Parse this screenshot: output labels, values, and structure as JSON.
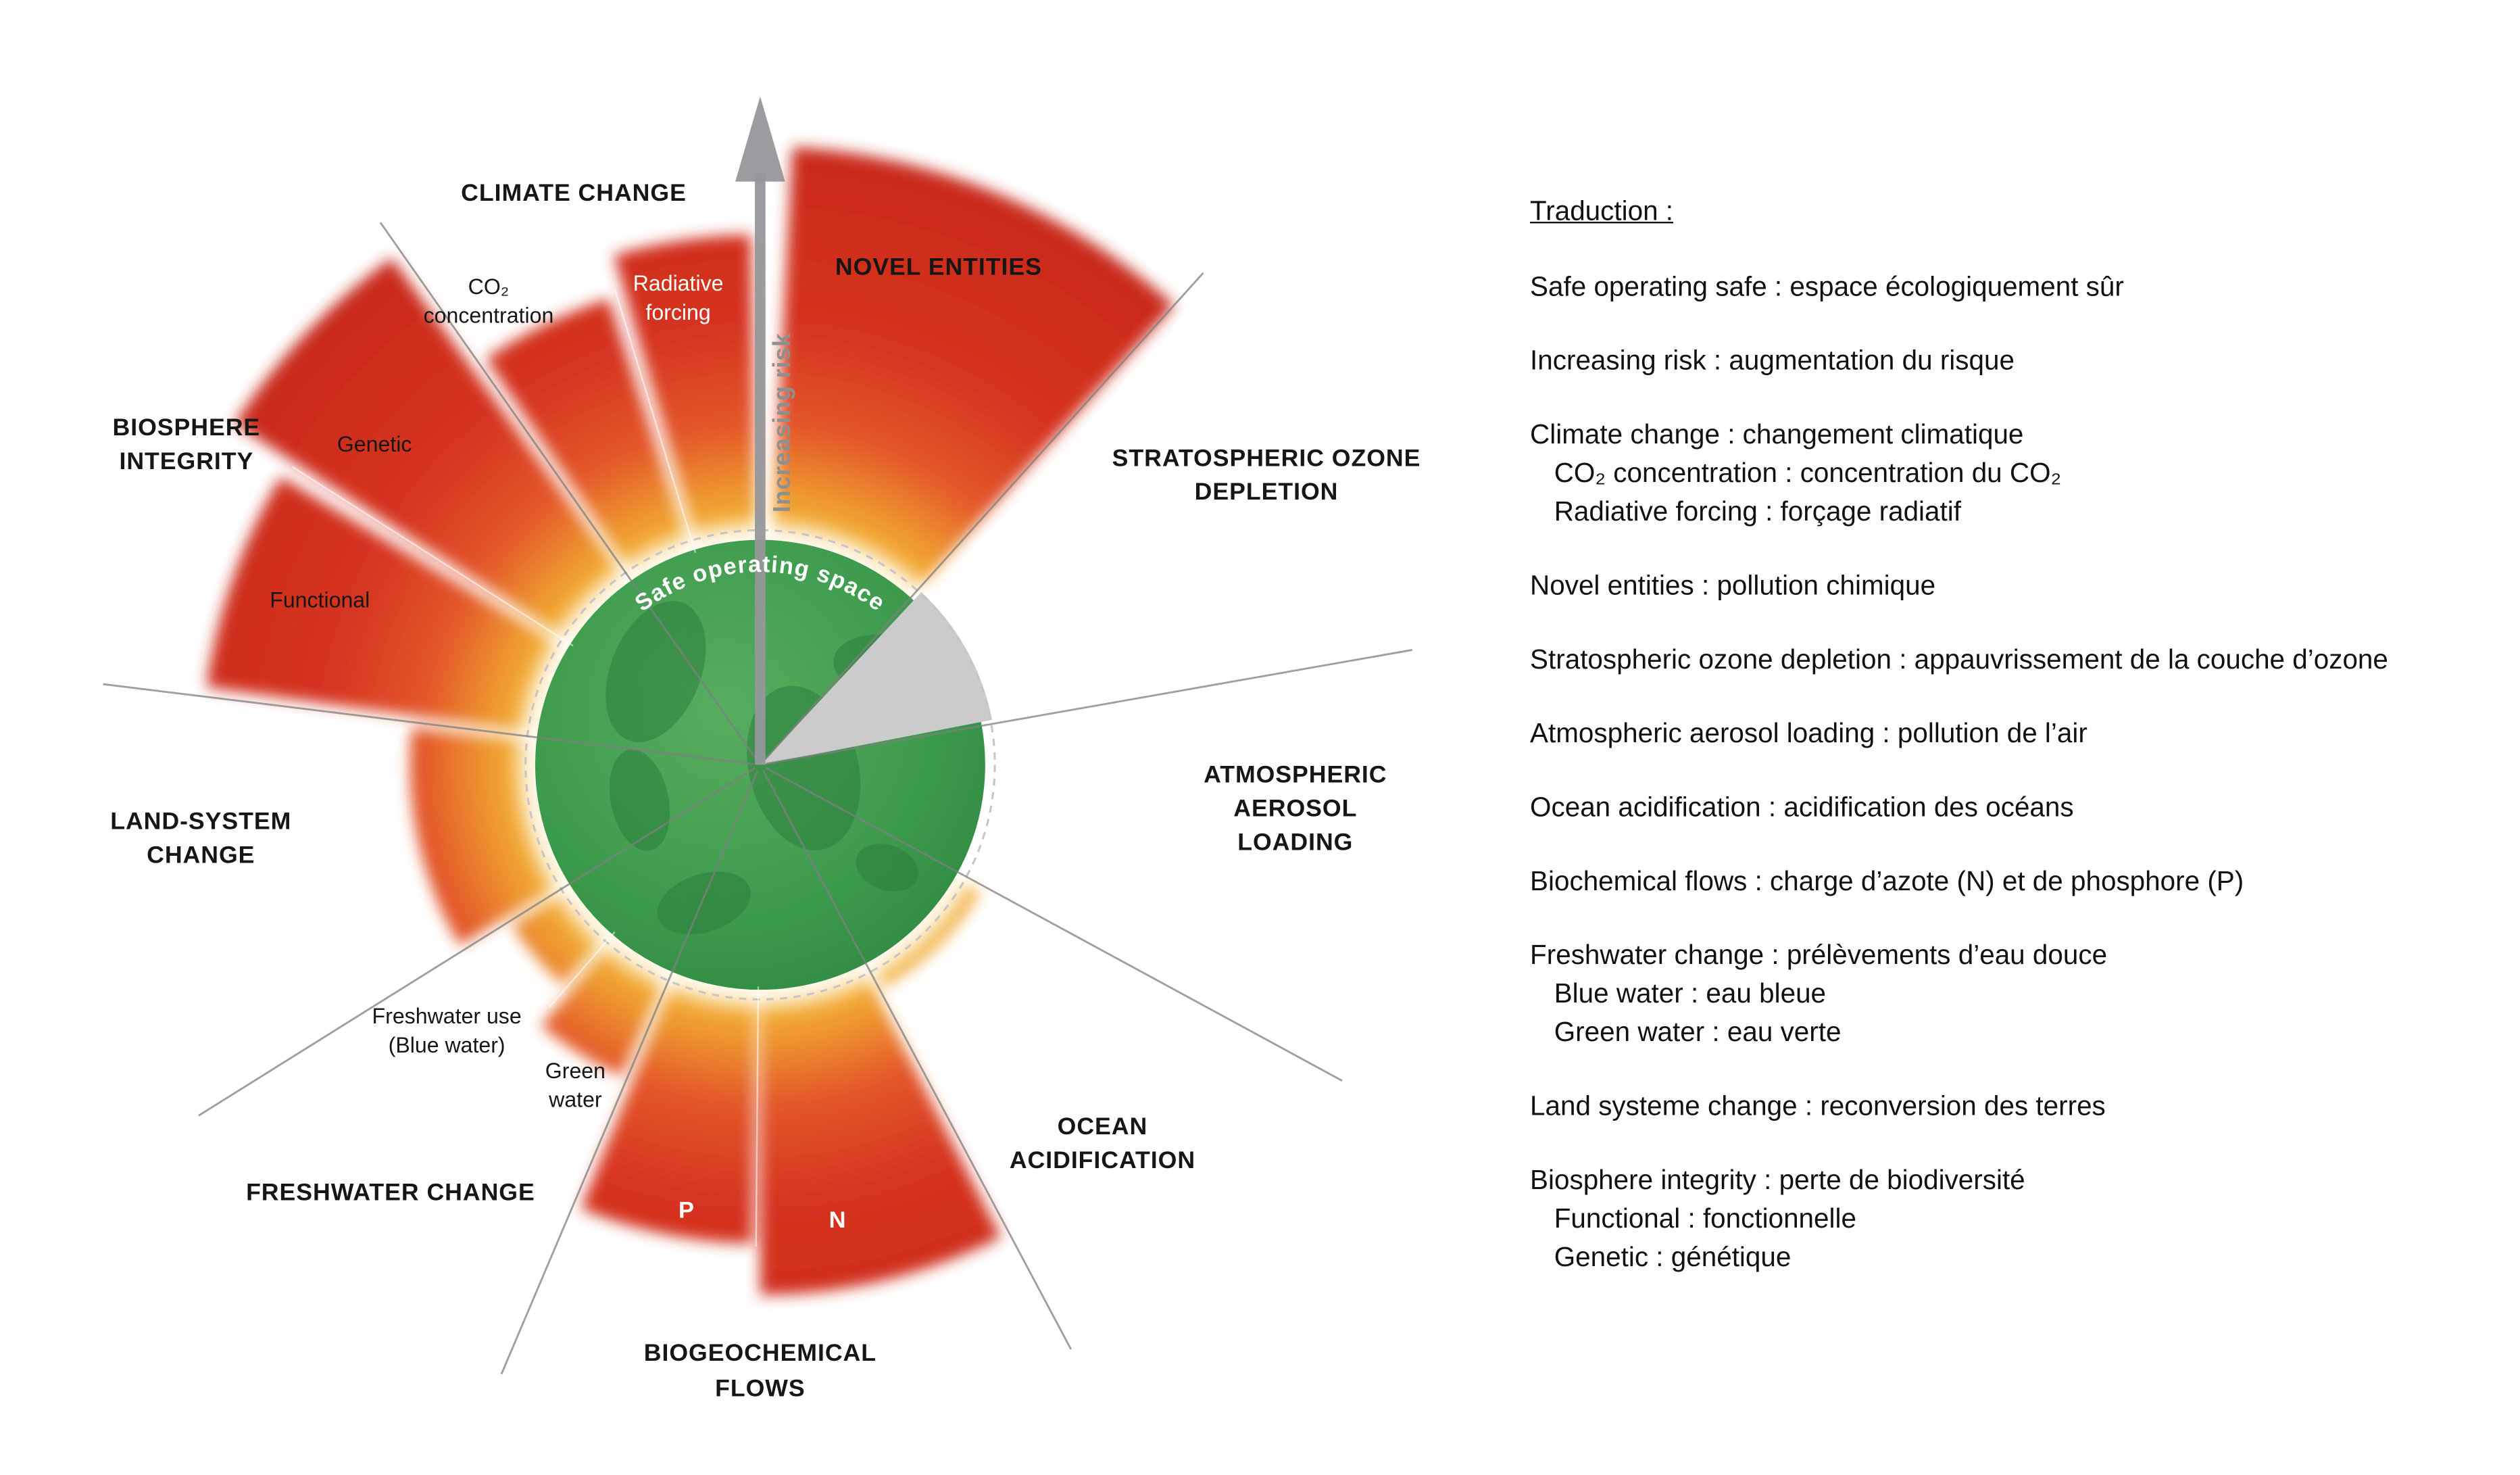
{
  "diagram": {
    "arrow_label": "Increasing risk",
    "center_label": "Safe operating space",
    "colors": {
      "safe_green": "#2f8a43",
      "risk_yellow": "#f7c43c",
      "risk_orange": "#ee9a30",
      "risk_red": "#d32f21",
      "gray_zone": "#cbcbcb",
      "divider_gray": "#7f7f7f",
      "arrow_gray": "#96979a"
    },
    "boundaries": [
      {
        "id": "novel-entities",
        "label": "NOVEL ENTITIES",
        "zone": "high-risk",
        "angle_start": 3,
        "angle_end": 42,
        "outer_radius": 385
      },
      {
        "id": "stratospheric-ozone",
        "label": "STRATOSPHERIC OZONE DEPLETION",
        "zone": "within-safe-gray",
        "angle_start": 43,
        "angle_end": 79,
        "outer_radius": 147
      },
      {
        "id": "atmospheric-aerosol",
        "label": "ATMOSPHERIC AEROSOL LOADING",
        "zone": "safe",
        "angle_start": 81,
        "angle_end": 117,
        "outer_radius": 0
      },
      {
        "id": "ocean-acidification",
        "label": "OCEAN ACIDIFICATION",
        "zone": "increasing-risk",
        "angle_start": 120,
        "angle_end": 151,
        "outer_radius": 158
      },
      {
        "id": "biogeochemical-n",
        "label": "N",
        "zone": "high-risk",
        "angle_start": 153,
        "angle_end": 180,
        "outer_radius": 330
      },
      {
        "id": "biogeochemical-p",
        "label": "P",
        "zone": "high-risk",
        "angle_start": 181,
        "angle_end": 202,
        "outer_radius": 298
      },
      {
        "id": "green-water",
        "label": "Green water",
        "zone": "increasing-risk",
        "angle_start": 204,
        "angle_end": 220,
        "outer_radius": 212
      },
      {
        "id": "blue-water",
        "label": "Freshwater use (Blue water)",
        "zone": "increasing-risk",
        "angle_start": 222,
        "angle_end": 237,
        "outer_radius": 184
      },
      {
        "id": "land-system-change",
        "label": "LAND-SYSTEM CHANGE",
        "zone": "increasing-risk",
        "angle_start": 239,
        "angle_end": 276,
        "outer_radius": 218
      },
      {
        "id": "biosphere-functional",
        "label": "Functional",
        "zone": "high-risk",
        "angle_start": 278,
        "angle_end": 301,
        "outer_radius": 348
      },
      {
        "id": "biosphere-genetic",
        "label": "Genetic",
        "zone": "high-risk",
        "angle_start": 303,
        "angle_end": 324,
        "outer_radius": 390
      },
      {
        "id": "climate-co2",
        "label": "CO₂ concentration",
        "zone": "high-risk",
        "angle_start": 326,
        "angle_end": 342,
        "outer_radius": 305
      },
      {
        "id": "climate-radiative",
        "label": "Radiative forcing",
        "zone": "high-risk",
        "angle_start": 344,
        "angle_end": 359,
        "outer_radius": 330
      }
    ],
    "dividers": [
      42,
      80,
      118.5,
      152,
      203,
      238,
      277,
      325
    ],
    "sub_dividers": [
      {
        "angle": 180.5,
        "radius": 300
      },
      {
        "angle": 221,
        "radius": 200
      },
      {
        "angle": 302.5,
        "radius": 345
      },
      {
        "angle": 343,
        "radius": 310
      }
    ],
    "labels": {
      "climate_change": "CLIMATE CHANGE",
      "co2_line1": "CO₂",
      "co2_line2": "concentration",
      "radiative_line1": "Radiative",
      "radiative_line2": "forcing",
      "novel_entities": "NOVEL ENTITIES",
      "ozone_line1": "STRATOSPHERIC OZONE",
      "ozone_line2": "DEPLETION",
      "aerosol_line1": "ATMOSPHERIC",
      "aerosol_line2": "AEROSOL",
      "aerosol_line3": "LOADING",
      "ocean_line1": "OCEAN",
      "ocean_line2": "ACIDIFICATION",
      "biogeo_line1": "BIOGEOCHEMICAL",
      "biogeo_line2": "FLOWS",
      "p": "P",
      "n": "N",
      "freshwater_change": "FRESHWATER CHANGE",
      "blue_line1": "Freshwater use",
      "blue_line2": "(Blue water)",
      "green_line1": "Green",
      "green_line2": "water",
      "land_line1": "LAND-SYSTEM",
      "land_line2": "CHANGE",
      "biosphere_line1": "BIOSPHERE",
      "biosphere_line2": "INTEGRITY",
      "genetic": "Genetic",
      "functional": "Functional"
    }
  },
  "translations": {
    "heading": "Traduction :",
    "groups": [
      {
        "main": "Safe operating safe : espace écologiquement sûr",
        "subs": []
      },
      {
        "main": "Increasing risk : augmentation du risque",
        "subs": []
      },
      {
        "main": "Climate change : changement climatique",
        "subs": [
          "CO₂ concentration : concentration du CO₂",
          "Radiative forcing : forçage radiatif"
        ]
      },
      {
        "main": "Novel entities : pollution chimique",
        "subs": []
      },
      {
        "main": "Stratospheric ozone depletion : appauvrissement de la couche d’ozone",
        "subs": []
      },
      {
        "main": "Atmospheric aerosol loading : pollution de l’air",
        "subs": []
      },
      {
        "main": "Ocean acidification : acidification des océans",
        "subs": []
      },
      {
        "main": "Biochemical flows : charge d’azote (N) et de phosphore (P)",
        "subs": []
      },
      {
        "main": "Freshwater change : prélèvements d’eau douce",
        "subs": [
          "Blue water : eau bleue",
          "Green water : eau verte"
        ]
      },
      {
        "main": "Land systeme change : reconversion des terres",
        "subs": []
      },
      {
        "main": "Biosphere integrity : perte de biodiversité",
        "subs": [
          "Functional : fonctionnelle",
          "Genetic : génétique"
        ]
      }
    ]
  }
}
